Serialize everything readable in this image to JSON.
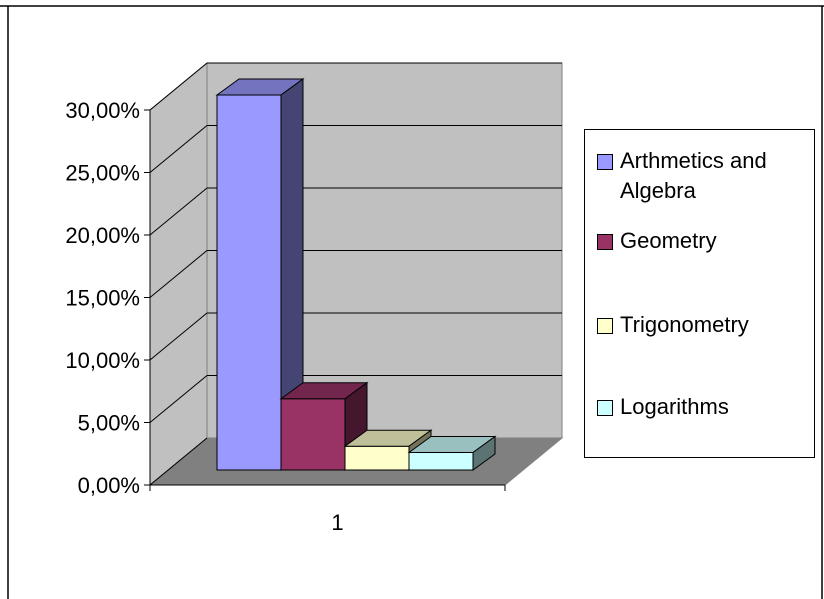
{
  "chart_data": {
    "type": "bar",
    "categories": [
      "1"
    ],
    "series": [
      {
        "name": "Arthmetics and Algebra",
        "values": [
          30.0
        ],
        "color": "#9999ff"
      },
      {
        "name": "Geometry",
        "values": [
          5.7
        ],
        "color": "#993366"
      },
      {
        "name": "Trigonometry",
        "values": [
          1.9
        ],
        "color": "#ffffcc"
      },
      {
        "name": "Logarithms",
        "values": [
          1.4
        ],
        "color": "#ccffff"
      }
    ],
    "title": "",
    "xlabel": "",
    "ylabel": "",
    "ylim": [
      0,
      30
    ],
    "yticks": [
      "0,00%",
      "5,00%",
      "10,00%",
      "15,00%",
      "20,00%",
      "25,00%",
      "30,00%"
    ],
    "grid": true,
    "three_d": true,
    "legend_position": "right",
    "colors": {
      "wall": "#c0c0c0",
      "floor": "#808080",
      "gridline": "#000000"
    }
  }
}
